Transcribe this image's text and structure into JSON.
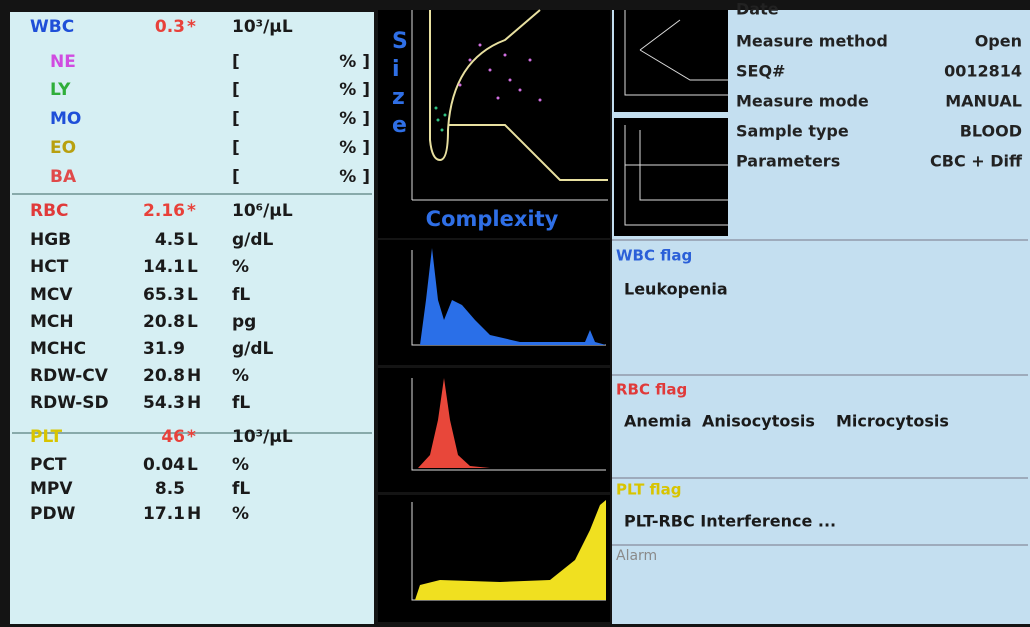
{
  "results": {
    "rows": [
      {
        "name": "WBC",
        "value": 0.3,
        "flag": "*",
        "unit": "10³/μL",
        "name_color": "#1f4fd8",
        "value_color": "#e8413a"
      },
      {
        "name": "NE",
        "unit": "[",
        "unit_close": "% ]",
        "name_color": "#d04ce0"
      },
      {
        "name": "LY",
        "unit": "[",
        "unit_close": "% ]",
        "name_color": "#2fae3a"
      },
      {
        "name": "MO",
        "unit": "[",
        "unit_close": "% ]",
        "name_color": "#1f4fd8"
      },
      {
        "name": "EO",
        "unit": "[",
        "unit_close": "% ]",
        "name_color": "#b8a010"
      },
      {
        "name": "BA",
        "unit": "[",
        "unit_close": "% ]",
        "name_color": "#e04a4a"
      },
      {
        "name": "RBC",
        "value": 2.16,
        "flag": "*",
        "unit": "10⁶/μL",
        "name_color": "#e03a3a",
        "value_color": "#e8413a"
      },
      {
        "name": "HGB",
        "value": 4.5,
        "flag": "L",
        "unit": "g/dL"
      },
      {
        "name": "HCT",
        "value": 14.1,
        "flag": "L",
        "unit": "%"
      },
      {
        "name": "MCV",
        "value": 65.3,
        "flag": "L",
        "unit": "fL"
      },
      {
        "name": "MCH",
        "value": 20.8,
        "flag": "L",
        "unit": "pg"
      },
      {
        "name": "MCHC",
        "value": 31.9,
        "unit": "g/dL"
      },
      {
        "name": "RDW-CV",
        "value": 20.8,
        "flag": "H",
        "unit": "%"
      },
      {
        "name": "RDW-SD",
        "value": 54.3,
        "flag": "H",
        "unit": "fL"
      },
      {
        "name": "PLT",
        "value": 46,
        "flag": "*",
        "unit": "10³/μL",
        "name_color": "#d8c400",
        "value_color": "#e8413a"
      },
      {
        "name": "PCT",
        "value": 0.04,
        "flag": "L",
        "unit": "%"
      },
      {
        "name": "MPV",
        "value": 8.5,
        "unit": "fL"
      },
      {
        "name": "PDW",
        "value": 17.1,
        "flag": "H",
        "unit": "%"
      }
    ]
  },
  "scatter": {
    "y_label": "Size",
    "x_label": "Complexity"
  },
  "info": {
    "date_label": "Date",
    "rows": [
      {
        "label": "Measure method",
        "value": "Open"
      },
      {
        "label": "SEQ#",
        "value": "0012814"
      },
      {
        "label": "Measure mode",
        "value": "MANUAL"
      },
      {
        "label": "Sample type",
        "value": "BLOOD"
      },
      {
        "label": "Parameters",
        "value": "CBC + Diff"
      }
    ]
  },
  "flags": {
    "wbc": {
      "title": "WBC flag",
      "items": [
        "Leukopenia"
      ]
    },
    "rbc": {
      "title": "RBC flag",
      "items": [
        "Anemia",
        "Anisocytosis",
        "Microcytosis"
      ]
    },
    "plt": {
      "title": "PLT flag",
      "items": [
        "PLT-RBC Interference ..."
      ]
    },
    "alarm": "Alarm"
  }
}
